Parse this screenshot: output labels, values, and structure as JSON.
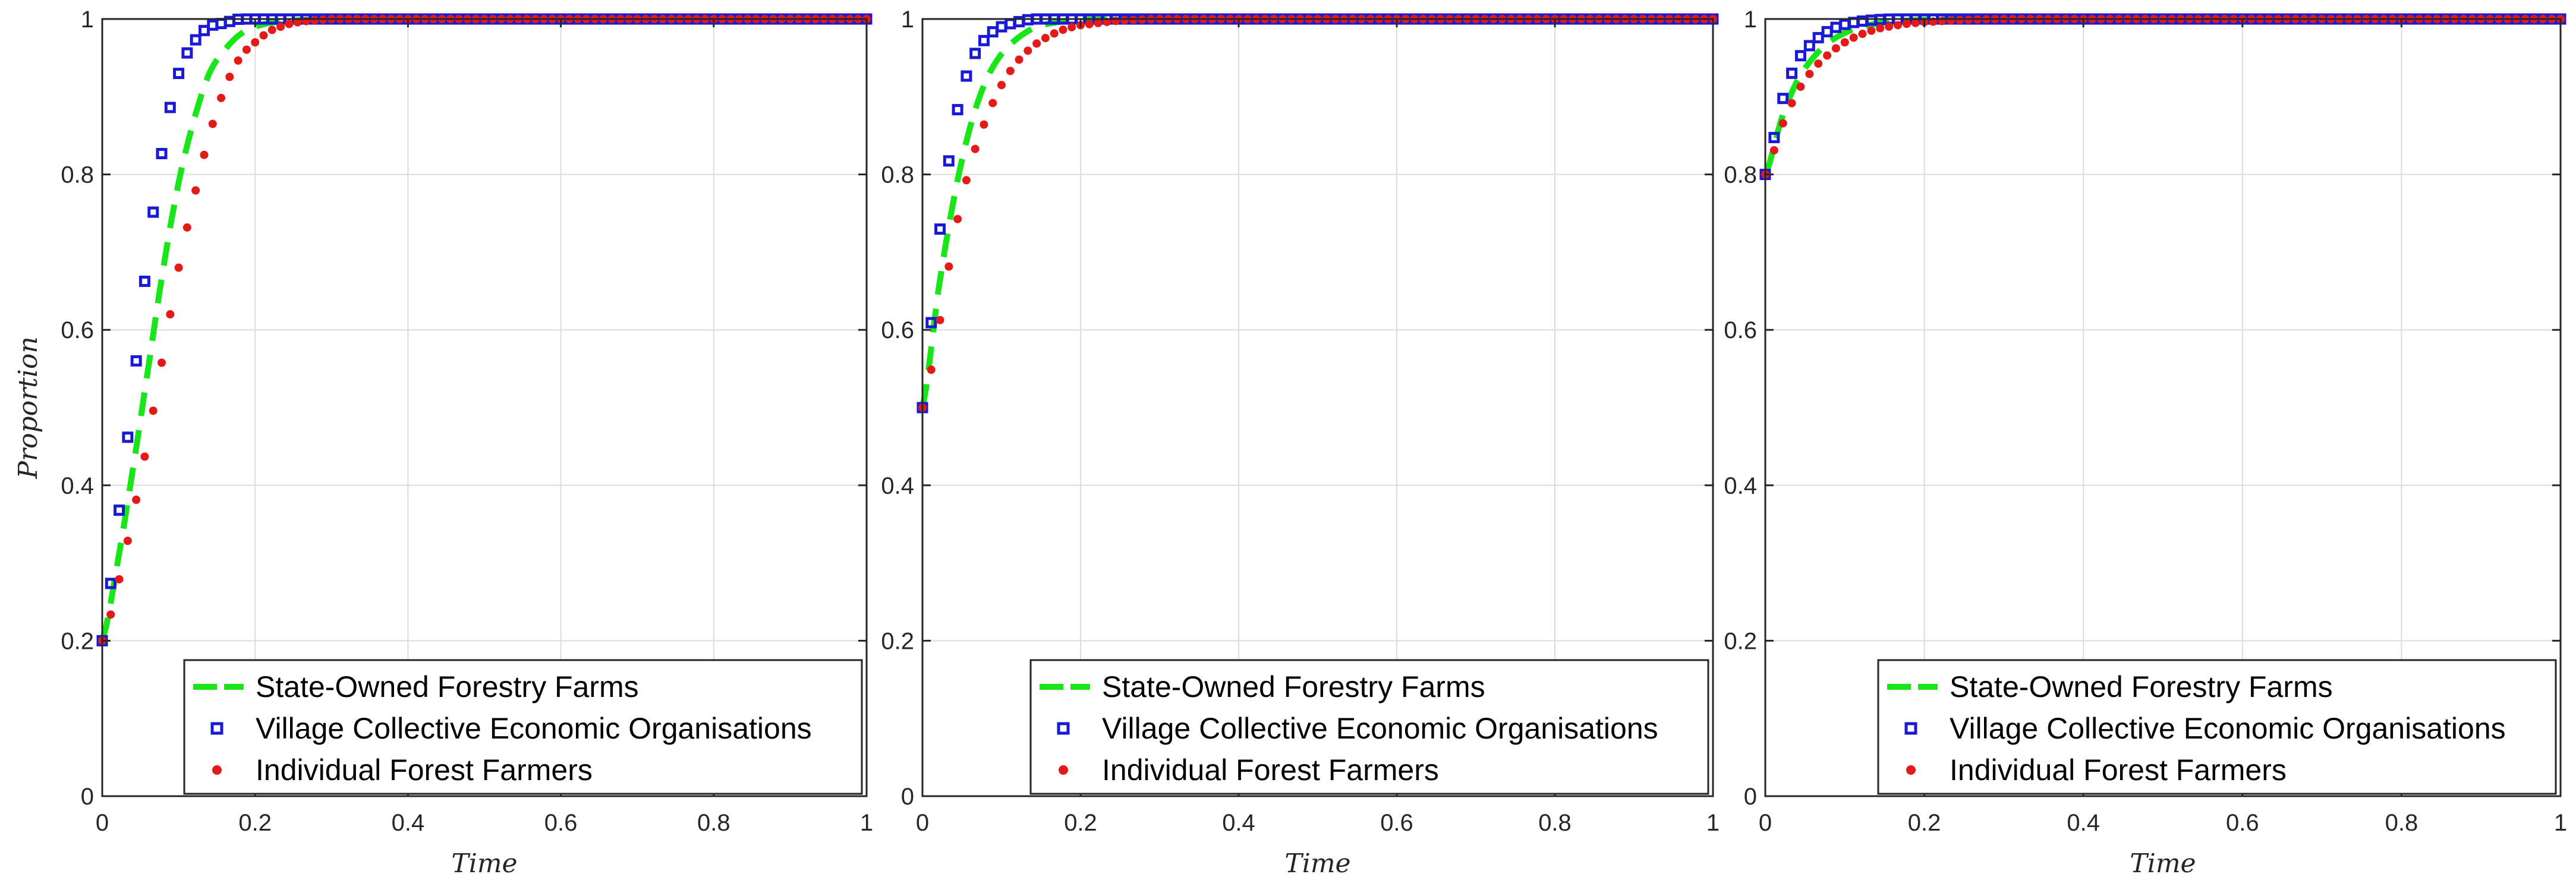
{
  "chart_data": [
    {
      "type": "line",
      "title": "",
      "xlabel": "Time",
      "ylabel": "Proportion",
      "xlim": [
        0,
        1
      ],
      "ylim": [
        0,
        1
      ],
      "grid": true,
      "legend_position": "bottom-right",
      "x_ticks": [
        0,
        0.2,
        0.4,
        0.6,
        0.8,
        1
      ],
      "x_tick_labels": [
        "0",
        "0.2",
        "0.4",
        "0.6",
        "0.8",
        "1"
      ],
      "y_ticks": [
        0,
        0.2,
        0.4,
        0.6,
        0.8,
        1
      ],
      "y_tick_labels": [
        "0",
        "0.2",
        "0.4",
        "0.6",
        "0.8",
        "1"
      ],
      "x": [
        0,
        0.02,
        0.04,
        0.06,
        0.08,
        0.1,
        0.12,
        0.14,
        0.16,
        0.18,
        0.2,
        0.22,
        0.25,
        0.3,
        0.35,
        0.4,
        0.5,
        0.6,
        0.7,
        0.8,
        0.9,
        1.0
      ],
      "series": [
        {
          "name": "State-Owned Forestry Farms",
          "style": "dashed",
          "color": "#19e619",
          "values": [
            0.2,
            0.3,
            0.42,
            0.55,
            0.68,
            0.79,
            0.87,
            0.93,
            0.96,
            0.98,
            0.99,
            0.995,
            0.998,
            1,
            1,
            1,
            1,
            1,
            1,
            1,
            1,
            1
          ]
        },
        {
          "name": "Village Collective Economic Organisations",
          "style": "square",
          "color": "#1a1ad6",
          "values": [
            0.2,
            0.35,
            0.52,
            0.7,
            0.84,
            0.93,
            0.97,
            0.99,
            0.995,
            1,
            1,
            1,
            1,
            1,
            1,
            1,
            1,
            1,
            1,
            1,
            1,
            1
          ]
        },
        {
          "name": "Individual Forest Farmers",
          "style": "dot",
          "color": "#e61919",
          "values": [
            0.2,
            0.27,
            0.36,
            0.46,
            0.57,
            0.68,
            0.77,
            0.85,
            0.91,
            0.95,
            0.97,
            0.985,
            0.995,
            1,
            1,
            1,
            1,
            1,
            1,
            1,
            1,
            1
          ]
        }
      ]
    },
    {
      "type": "line",
      "title": "",
      "xlabel": "Time",
      "ylabel": "",
      "xlim": [
        0,
        1
      ],
      "ylim": [
        0,
        1
      ],
      "grid": true,
      "legend_position": "bottom-right",
      "x_ticks": [
        0,
        0.2,
        0.4,
        0.6,
        0.8,
        1
      ],
      "x_tick_labels": [
        "0",
        "0.2",
        "0.4",
        "0.6",
        "0.8",
        "1"
      ],
      "y_ticks": [
        0,
        0.2,
        0.4,
        0.6,
        0.8,
        1
      ],
      "y_tick_labels": [
        "0",
        "0.2",
        "0.4",
        "0.6",
        "0.8",
        "1"
      ],
      "x": [
        0,
        0.02,
        0.04,
        0.06,
        0.08,
        0.1,
        0.12,
        0.14,
        0.16,
        0.18,
        0.2,
        0.25,
        0.3,
        0.4,
        0.5,
        0.6,
        0.7,
        0.8,
        0.9,
        1.0
      ],
      "series": [
        {
          "name": "State-Owned Forestry Farms",
          "style": "dashed",
          "color": "#19e619",
          "values": [
            0.5,
            0.65,
            0.77,
            0.86,
            0.92,
            0.955,
            0.975,
            0.988,
            0.994,
            0.997,
            0.999,
            1,
            1,
            1,
            1,
            1,
            1,
            1,
            1,
            1
          ]
        },
        {
          "name": "Village Collective Economic Organisations",
          "style": "square",
          "color": "#1a1ad6",
          "values": [
            0.5,
            0.71,
            0.86,
            0.94,
            0.975,
            0.99,
            0.996,
            1,
            1,
            1,
            1,
            1,
            1,
            1,
            1,
            1,
            1,
            1,
            1,
            1
          ]
        },
        {
          "name": "Individual Forest Farmers",
          "style": "dot",
          "color": "#e61919",
          "values": [
            0.5,
            0.6,
            0.72,
            0.81,
            0.87,
            0.915,
            0.945,
            0.965,
            0.978,
            0.987,
            0.992,
            0.998,
            1,
            1,
            1,
            1,
            1,
            1,
            1,
            1
          ]
        }
      ]
    },
    {
      "type": "line",
      "title": "",
      "xlabel": "Time",
      "ylabel": "",
      "xlim": [
        0,
        1
      ],
      "ylim": [
        0,
        1
      ],
      "grid": true,
      "legend_position": "bottom-right",
      "x_ticks": [
        0,
        0.2,
        0.4,
        0.6,
        0.8,
        1
      ],
      "x_tick_labels": [
        "0",
        "0.2",
        "0.4",
        "0.6",
        "0.8",
        "1"
      ],
      "y_ticks": [
        0,
        0.2,
        0.4,
        0.6,
        0.8,
        1
      ],
      "y_tick_labels": [
        "0",
        "0.2",
        "0.4",
        "0.6",
        "0.8",
        "1"
      ],
      "x": [
        0,
        0.02,
        0.04,
        0.06,
        0.08,
        0.1,
        0.12,
        0.14,
        0.16,
        0.18,
        0.2,
        0.25,
        0.3,
        0.4,
        0.5,
        0.6,
        0.7,
        0.8,
        0.9,
        1.0
      ],
      "series": [
        {
          "name": "State-Owned Forestry Farms",
          "style": "dashed",
          "color": "#19e619",
          "values": [
            0.8,
            0.87,
            0.92,
            0.95,
            0.97,
            0.982,
            0.99,
            0.994,
            0.997,
            0.998,
            0.999,
            1,
            1,
            1,
            1,
            1,
            1,
            1,
            1,
            1
          ]
        },
        {
          "name": "Village Collective Economic Organisations",
          "style": "square",
          "color": "#1a1ad6",
          "values": [
            0.8,
            0.89,
            0.945,
            0.97,
            0.985,
            0.993,
            0.997,
            0.999,
            1,
            1,
            1,
            1,
            1,
            1,
            1,
            1,
            1,
            1,
            1,
            1
          ]
        },
        {
          "name": "Individual Forest Farmers",
          "style": "dot",
          "color": "#e61919",
          "values": [
            0.8,
            0.86,
            0.905,
            0.935,
            0.955,
            0.97,
            0.98,
            0.987,
            0.991,
            0.994,
            0.996,
            0.999,
            1,
            1,
            1,
            1,
            1,
            1,
            1,
            1
          ]
        }
      ]
    }
  ]
}
